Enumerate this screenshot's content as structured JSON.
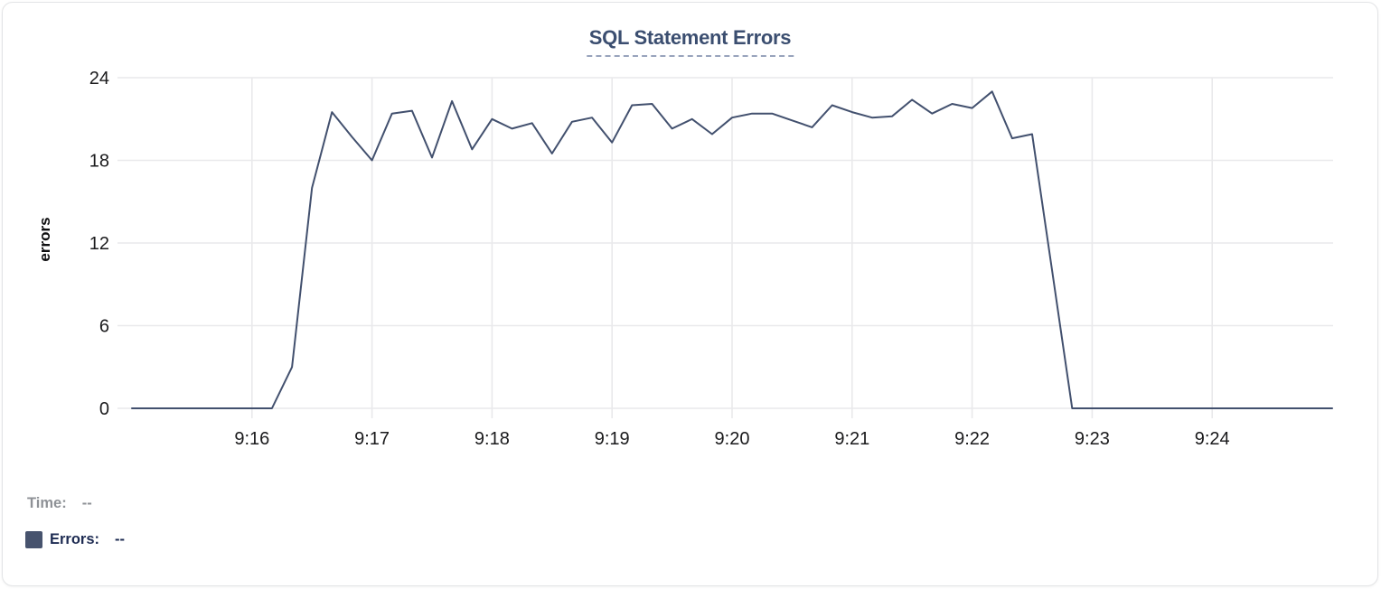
{
  "chart_data": {
    "type": "line",
    "title": "SQL Statement Errors",
    "ylabel": "errors",
    "xlabel": "",
    "y_ticks": [
      0,
      6,
      12,
      18,
      24
    ],
    "ylim": [
      0,
      24
    ],
    "x_tick_labels": [
      "9:16",
      "9:17",
      "9:18",
      "9:19",
      "9:20",
      "9:21",
      "9:22",
      "9:23",
      "9:24"
    ],
    "x_tick_minutes": [
      1,
      2,
      3,
      4,
      5,
      6,
      7,
      8,
      9
    ],
    "x_range_minutes": 10,
    "x_start_time": "9:15:00",
    "x_end_time": "9:25:00",
    "sample_interval_seconds": 10,
    "grid": true,
    "legend_position": "none",
    "series": [
      {
        "name": "Errors",
        "color": "#42506e",
        "values": [
          0,
          0,
          0,
          0,
          0,
          0,
          0,
          0,
          3,
          16,
          21.5,
          19.7,
          18,
          21.4,
          21.6,
          18.2,
          22.3,
          18.8,
          21,
          20.3,
          20.7,
          18.5,
          20.8,
          21.1,
          19.3,
          22,
          22.1,
          20.3,
          21,
          19.9,
          21.1,
          21.4,
          21.4,
          20.9,
          20.4,
          22,
          21.5,
          21.1,
          21.2,
          22.4,
          21.4,
          22.1,
          21.8,
          23,
          19.6,
          19.9,
          10,
          0,
          0,
          0,
          0,
          0,
          0,
          0,
          0,
          0,
          0,
          0,
          0,
          0,
          0
        ]
      }
    ]
  },
  "tooltip_readout": {
    "time_label": "Time:",
    "time_value": "--",
    "errors_label": "Errors:",
    "errors_value": "--"
  },
  "colors": {
    "title": "#3b4e70",
    "title_underline": "#98a3bc",
    "series_line": "#42506e",
    "legend_swatch": "#47536e",
    "time_label": "#8e9196",
    "errors_label": "#1d2b52",
    "grid": "#e9e9eb",
    "tick_text": "#1a1a1c",
    "card_border": "#e3e4e6"
  }
}
